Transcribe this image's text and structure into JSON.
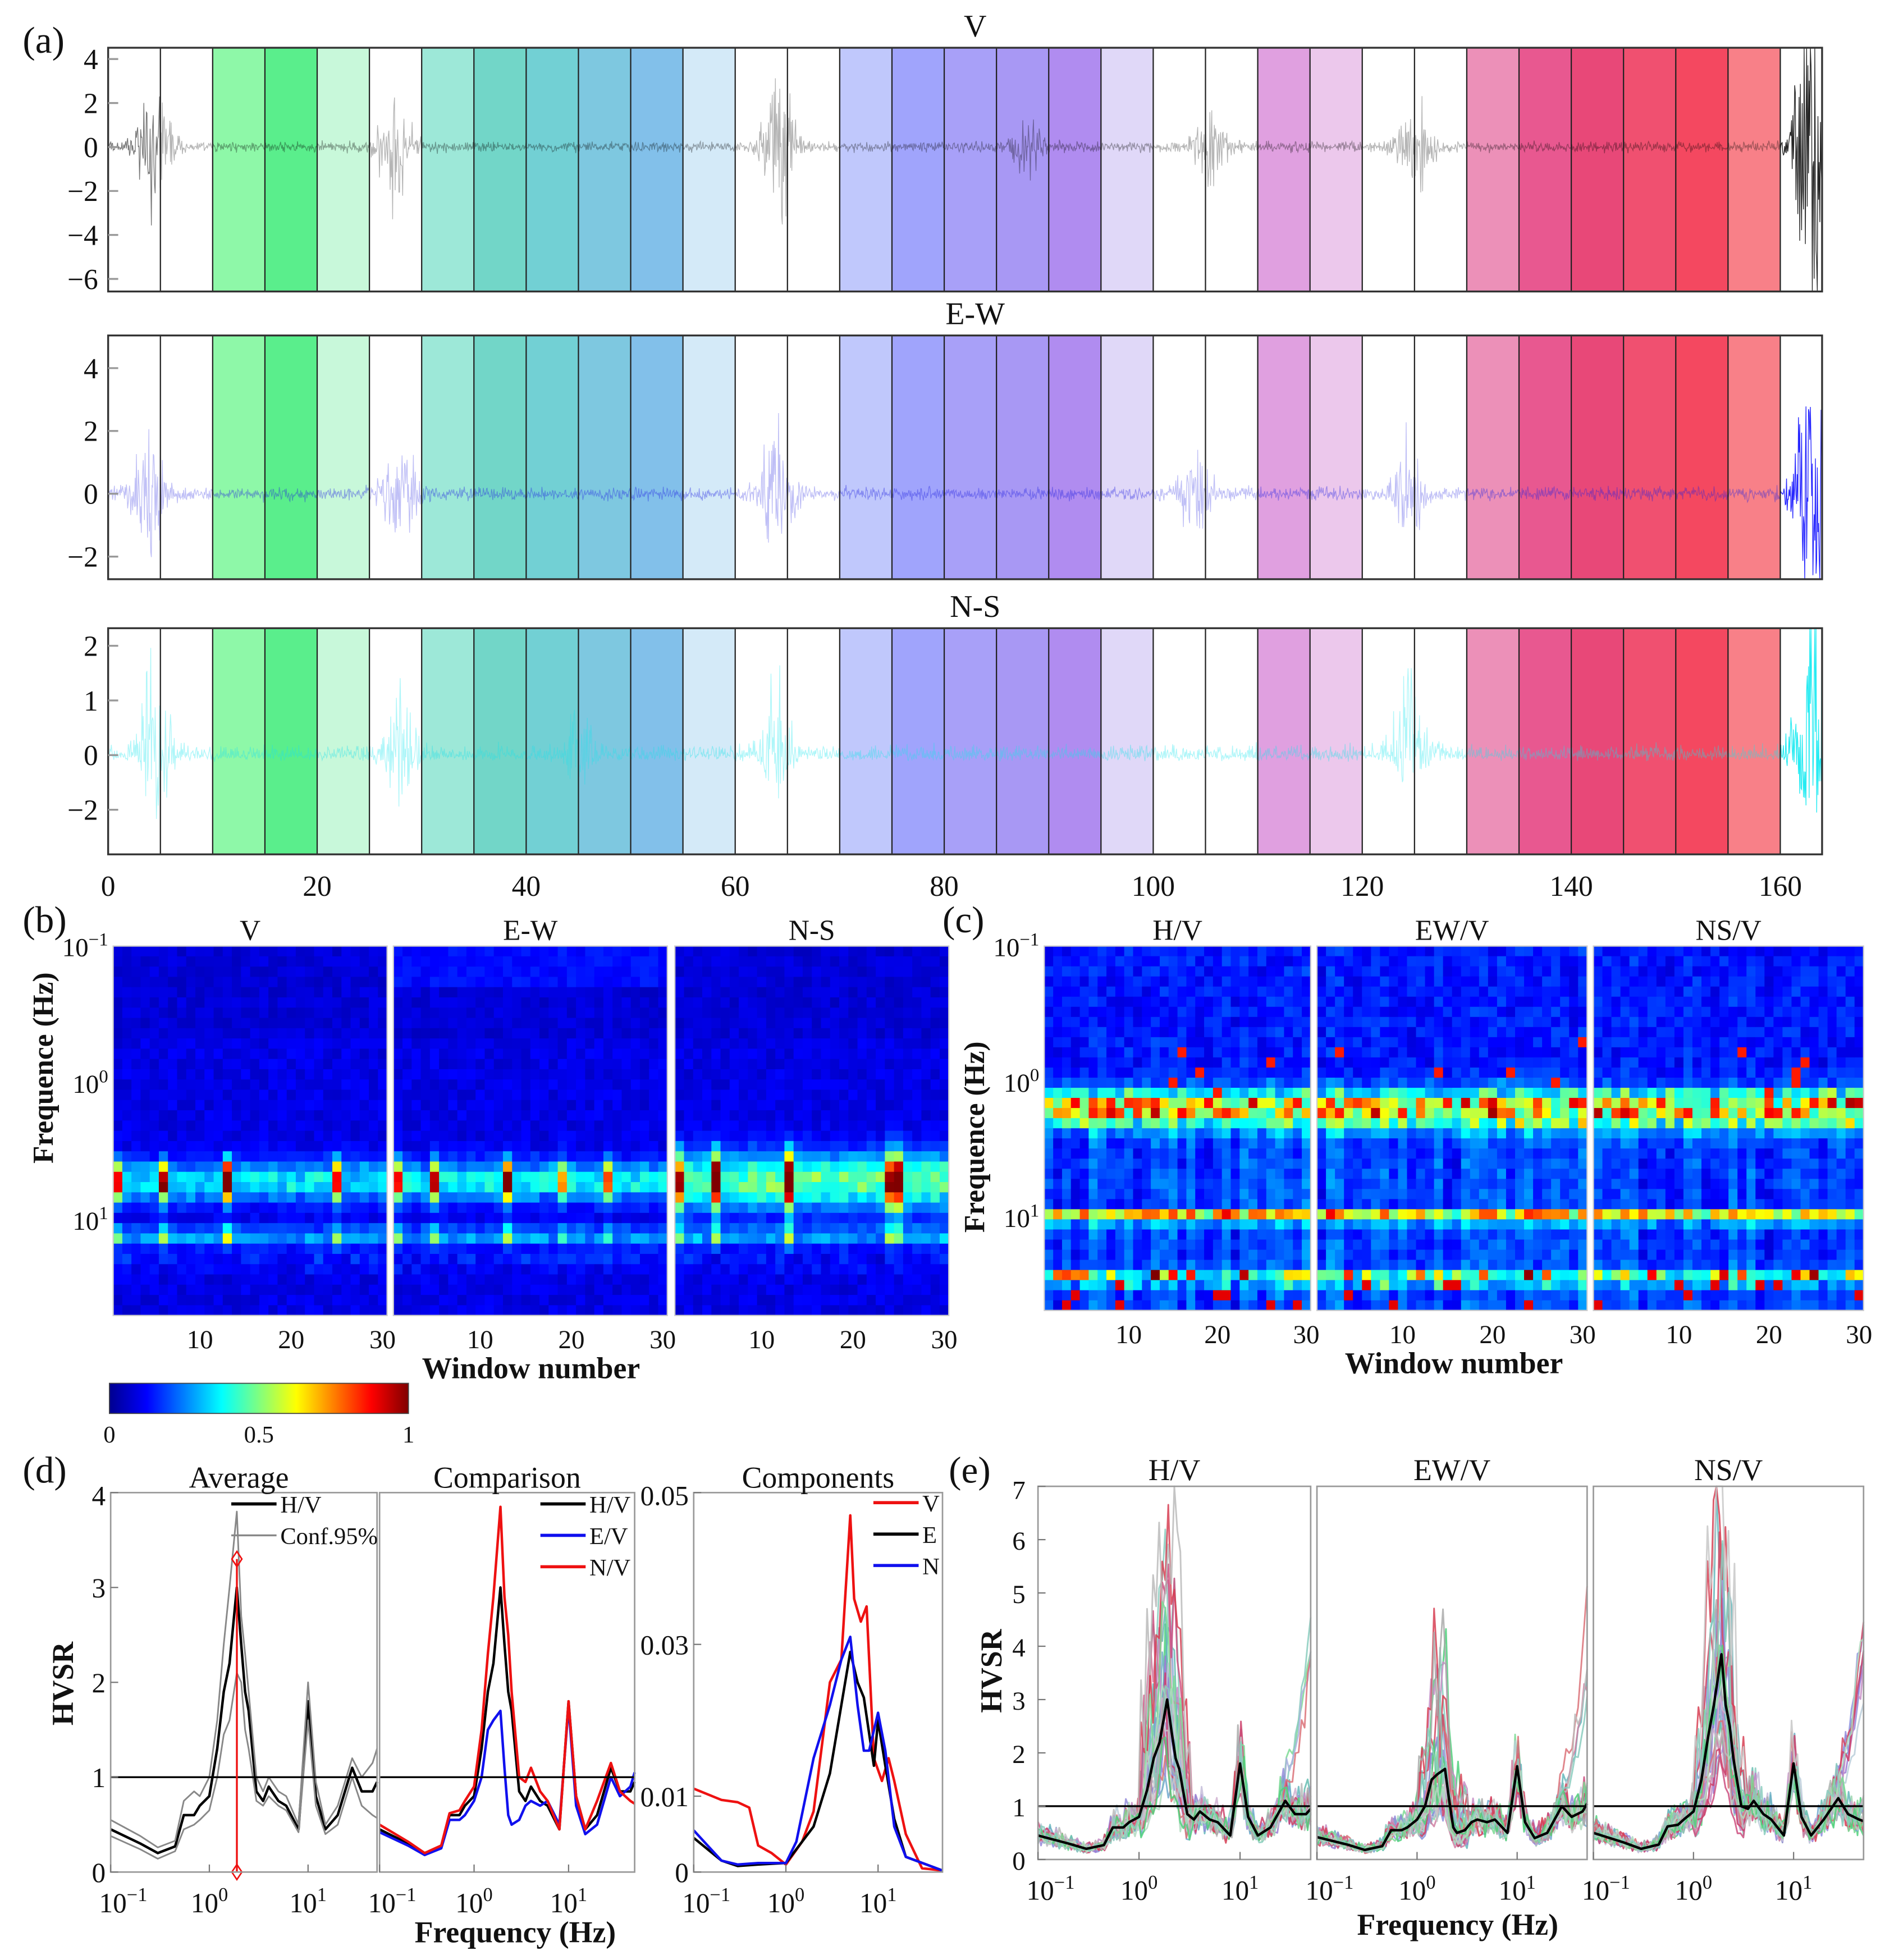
{
  "panel_labels": [
    "(a)",
    "(b)",
    "(c)",
    "(d)",
    "(e)"
  ],
  "chart_data": [
    {
      "id": "a",
      "type": "line",
      "xlim": [
        0,
        164
      ],
      "xticks": [
        0,
        20,
        40,
        60,
        80,
        100,
        120,
        140,
        160
      ],
      "window_length": 5,
      "window_colors": [
        null,
        null,
        "#8ef8a8",
        "#5aee8c",
        "#c8f8da",
        null,
        "#9de8d8",
        "#72d6c8",
        "#72d0d4",
        "#7ec8e0",
        "#82c0ea",
        "#d4eaf8",
        null,
        null,
        "#c0c8fc",
        "#a0a4fc",
        "#a8a0f8",
        "#a898f4",
        "#b08cf0",
        "#e0d8f8",
        null,
        null,
        "#e0a0e0",
        "#ecc8ec",
        null,
        null,
        "#ec90b8",
        "#e85890",
        "#e84878",
        "#f05070",
        "#f44860",
        "#f88088"
      ],
      "subplots": [
        {
          "title": "V",
          "yticks": [
            4,
            2,
            0,
            -2,
            -4,
            -6
          ],
          "ytick_labels": [
            "4",
            "2",
            "0",
            "−2",
            "−4",
            "−6"
          ],
          "noise": 1.0,
          "events": [
            [
              4.5,
              2.0
            ],
            [
              27.5,
              1.8
            ],
            [
              64,
              2.6
            ],
            [
              88,
              0.8
            ],
            [
              105.5,
              1.2
            ],
            [
              125,
              1.7
            ],
            [
              163,
              4.2
            ]
          ]
        },
        {
          "title": "E-W",
          "yticks": [
            4,
            2,
            0,
            -2
          ],
          "ytick_labels": [
            "4",
            "2",
            "0",
            "−2"
          ],
          "noise": 0.9,
          "events": [
            [
              4,
              1.4
            ],
            [
              28,
              1.1
            ],
            [
              64,
              1.6
            ],
            [
              104,
              0.8
            ],
            [
              124.5,
              1.1
            ],
            [
              163,
              3.2
            ]
          ]
        },
        {
          "title": "N-S",
          "yticks": [
            2,
            1,
            0,
            -2
          ],
          "ytick_labels": [
            "2",
            "1",
            "0",
            "−2"
          ],
          "noise": 0.8,
          "events": [
            [
              4.5,
              1.2
            ],
            [
              28,
              0.9
            ],
            [
              45,
              0.6
            ],
            [
              64,
              0.9
            ],
            [
              124.5,
              1.1
            ],
            [
              163,
              1.9
            ]
          ]
        }
      ]
    },
    {
      "id": "b",
      "type": "heatmap",
      "titles": [
        "V",
        "E-W",
        "N-S"
      ],
      "xlabel": "Window number",
      "ylabel": "Frequence (Hz)",
      "xticks": [
        10,
        20,
        30
      ],
      "yticks": [
        {
          "base": "10",
          "exp": "−1"
        },
        {
          "base": "10",
          "exp": "0"
        },
        {
          "base": "10",
          "exp": "1"
        }
      ],
      "frequency_range_hz": [
        0.1,
        50
      ],
      "windows": 30,
      "energy_band_hz": [
        5.2,
        13
      ],
      "hot_windows": [
        {
          "1": 0.5,
          "6": 0.7,
          "13": 0.95,
          "25": 0.6
        },
        {
          "1": 0.5,
          "5": 0.6,
          "13": 0.85,
          "19": 0.4,
          "24": 0.5
        },
        {
          "1": 0.5,
          "5": 0.7,
          "13": 0.75,
          "24": 0.6,
          "25": 0.7
        }
      ],
      "colorbar": {
        "colormap": "jet",
        "ticks": [
          "0",
          "0.5",
          "1"
        ],
        "range": [
          0,
          1
        ]
      }
    },
    {
      "id": "c",
      "type": "heatmap",
      "titles": [
        "H/V",
        "EW/V",
        "NS/V"
      ],
      "xlabel": "Window number",
      "ylabel": "Frequence (Hz)",
      "xticks": [
        10,
        20,
        30
      ],
      "yticks": [
        {
          "base": "10",
          "exp": "−1"
        },
        {
          "base": "10",
          "exp": "0"
        },
        {
          "base": "10",
          "exp": "1"
        }
      ],
      "frequency_range_hz": [
        0.1,
        49
      ],
      "windows": 30,
      "peak_bands_hz": [
        1.7,
        10,
        28
      ]
    },
    {
      "id": "d",
      "type": "line",
      "xlabel": "Frequency (Hz)",
      "ylabel": "HVSR",
      "xscale": "log",
      "xlim": [
        0.1,
        50
      ],
      "xticks": [
        {
          "base": "10",
          "exp": "−1"
        },
        {
          "base": "10",
          "exp": "0"
        },
        {
          "base": "10",
          "exp": "1"
        }
      ],
      "freq": [
        0.1,
        0.2,
        0.3,
        0.45,
        0.55,
        0.7,
        0.8,
        1.0,
        1.2,
        1.4,
        1.6,
        1.9,
        2.1,
        2.3,
        2.5,
        3.0,
        3.5,
        4,
        5,
        6,
        8,
        10,
        12,
        15,
        20,
        28,
        35,
        45,
        50
      ],
      "subplots": [
        {
          "title": "Average",
          "ylim": [
            0,
            4
          ],
          "yticks": [
            "4",
            "3",
            "2",
            "1",
            "0"
          ],
          "legend": [
            "H/V",
            "Conf.95%"
          ],
          "series": [
            {
              "name": "H/V",
              "color": "#000000",
              "values": [
                0.45,
                0.3,
                0.2,
                0.27,
                0.6,
                0.6,
                0.7,
                0.8,
                1.3,
                1.9,
                2.2,
                3.0,
                2.4,
                1.9,
                1.7,
                0.85,
                0.75,
                0.9,
                0.75,
                0.7,
                0.45,
                1.8,
                0.8,
                0.45,
                0.6,
                1.1,
                0.85,
                0.85,
                0.95
              ]
            },
            {
              "name": "Conf.95% upper",
              "color": "#888888",
              "values": [
                0.55,
                0.38,
                0.26,
                0.33,
                0.75,
                0.85,
                0.8,
                1.0,
                1.6,
                2.4,
                3.0,
                3.8,
                2.7,
                2.3,
                1.9,
                1.0,
                0.85,
                1.0,
                0.85,
                0.8,
                0.5,
                2.0,
                0.95,
                0.5,
                0.7,
                1.2,
                1.0,
                1.15,
                1.3
              ]
            },
            {
              "name": "Conf.95% lower",
              "color": "#888888",
              "values": [
                0.38,
                0.24,
                0.14,
                0.22,
                0.45,
                0.5,
                0.55,
                0.65,
                1.0,
                1.45,
                1.6,
                2.1,
                2.0,
                1.5,
                1.3,
                0.75,
                0.7,
                0.8,
                0.7,
                0.65,
                0.42,
                1.6,
                0.7,
                0.4,
                0.5,
                1.0,
                0.7,
                0.6,
                0.57
              ]
            }
          ],
          "f0_marker": {
            "freq": 1.9,
            "values": [
              0,
              3.3
            ],
            "color": "#ee1111"
          },
          "reference_line": 1
        },
        {
          "title": "Comparison",
          "ylim": [
            0,
            4
          ],
          "legend": [
            "H/V",
            "E/V",
            "N/V"
          ],
          "series": [
            {
              "name": "H/V",
              "color": "#000000",
              "values": [
                0.45,
                0.3,
                0.2,
                0.27,
                0.6,
                0.6,
                0.7,
                0.8,
                1.3,
                1.9,
                2.2,
                3.0,
                2.4,
                1.9,
                1.7,
                0.85,
                0.75,
                0.9,
                0.75,
                0.7,
                0.45,
                1.8,
                0.8,
                0.45,
                0.6,
                1.1,
                0.85,
                0.85,
                0.95
              ]
            },
            {
              "name": "E/V",
              "color": "#1010ee",
              "values": [
                0.42,
                0.28,
                0.18,
                0.25,
                0.55,
                0.55,
                0.6,
                0.75,
                1.0,
                1.5,
                1.6,
                1.7,
                1.1,
                0.6,
                0.5,
                0.55,
                0.7,
                0.75,
                0.7,
                0.75,
                0.5,
                1.75,
                0.7,
                0.4,
                0.5,
                1.0,
                0.8,
                0.9,
                1.05
              ]
            },
            {
              "name": "N/V",
              "color": "#ee1111",
              "values": [
                0.5,
                0.32,
                0.2,
                0.28,
                0.62,
                0.65,
                0.75,
                0.9,
                1.5,
                2.3,
                2.9,
                3.85,
                2.9,
                2.5,
                1.9,
                1.0,
                0.95,
                1.1,
                0.85,
                0.75,
                0.45,
                1.8,
                0.8,
                0.45,
                0.75,
                1.15,
                0.85,
                0.75,
                0.72
              ]
            }
          ],
          "reference_line": 1
        },
        {
          "title": "Components",
          "ylim": [
            0,
            0.05
          ],
          "yticks": [
            "0.05",
            "0.03",
            "0.01",
            "0"
          ],
          "ytick_values": [
            0.05,
            0.03,
            0.01,
            0
          ],
          "legend": [
            "V",
            "E",
            "N"
          ],
          "series": [
            {
              "name": "V",
              "color": "#ee1111",
              "freq": [
                0.1,
                0.2,
                0.3,
                0.4,
                0.5,
                0.7,
                1,
                1.5,
                2,
                3,
                4,
                5,
                5.5,
                6.5,
                7.5,
                9,
                11,
                13,
                15,
                20,
                30,
                50
              ],
              "values": [
                0.011,
                0.0095,
                0.0092,
                0.0085,
                0.0035,
                0.0025,
                0.001,
                0.004,
                0.008,
                0.025,
                0.028,
                0.047,
                0.036,
                0.033,
                0.035,
                0.015,
                0.012,
                0.015,
                0.012,
                0.005,
                0.0005,
                0.0002
              ]
            },
            {
              "name": "E",
              "color": "#000000",
              "freq": [
                0.1,
                0.2,
                0.3,
                0.5,
                1,
                1.5,
                2,
                3,
                4,
                5,
                6,
                7,
                9,
                10,
                12,
                15,
                20,
                50
              ],
              "values": [
                0.0045,
                0.0015,
                0.0008,
                0.001,
                0.0012,
                0.004,
                0.006,
                0.013,
                0.022,
                0.029,
                0.025,
                0.023,
                0.014,
                0.02,
                0.014,
                0.007,
                0.002,
                0.0002
              ]
            },
            {
              "name": "N",
              "color": "#1010ee",
              "freq": [
                0.1,
                0.2,
                0.3,
                0.5,
                1,
                1.3,
                2,
                3,
                4,
                5,
                6,
                7,
                8,
                10,
                12,
                15,
                20,
                50
              ],
              "values": [
                0.0055,
                0.0015,
                0.001,
                0.0012,
                0.0012,
                0.004,
                0.015,
                0.022,
                0.028,
                0.031,
                0.022,
                0.016,
                0.016,
                0.021,
                0.016,
                0.006,
                0.002,
                0.0002
              ]
            }
          ]
        }
      ]
    },
    {
      "id": "e",
      "type": "line",
      "xlabel": "Frequency (Hz)",
      "ylabel": "HVSR",
      "xscale": "log",
      "xlim": [
        0.1,
        50
      ],
      "ylim": [
        0,
        7
      ],
      "yticks": [
        "7",
        "6",
        "5",
        "4",
        "3",
        "2",
        "1",
        "0"
      ],
      "xticks": [
        {
          "base": "10",
          "exp": "−1"
        },
        {
          "base": "10",
          "exp": "0"
        },
        {
          "base": "10",
          "exp": "1"
        }
      ],
      "subplots": [
        {
          "title": "H/V",
          "mean_of": "H/V",
          "n_windows": 30
        },
        {
          "title": "EW/V",
          "mean_of": "E/V",
          "n_windows": 30
        },
        {
          "title": "NS/V",
          "mean_of": "N/V",
          "n_windows": 30
        }
      ],
      "reference_line": 1
    }
  ]
}
